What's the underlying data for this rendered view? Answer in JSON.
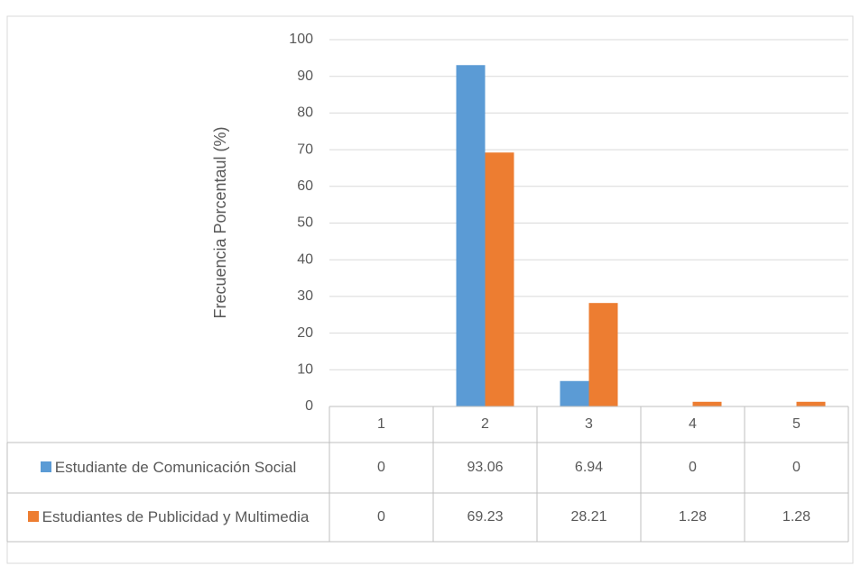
{
  "chart_data": {
    "type": "bar",
    "y_label": "Frecuencia Porcentaul (%)",
    "categories": [
      "1",
      "2",
      "3",
      "4",
      "5"
    ],
    "series": [
      {
        "name": "Estudiante de Comunicación Social",
        "color": "#5b9bd5",
        "values": [
          0,
          93.06,
          6.94,
          0,
          0
        ]
      },
      {
        "name": "Estudiantes de Publicidad  y Multimedia",
        "color": "#ed7d31",
        "values": [
          0,
          69.23,
          28.21,
          1.28,
          1.28
        ]
      }
    ],
    "ylim": [
      0,
      100
    ],
    "yticks": [
      0,
      10,
      20,
      30,
      40,
      50,
      60,
      70,
      80,
      90,
      100
    ],
    "grid": true,
    "data_table": true
  }
}
